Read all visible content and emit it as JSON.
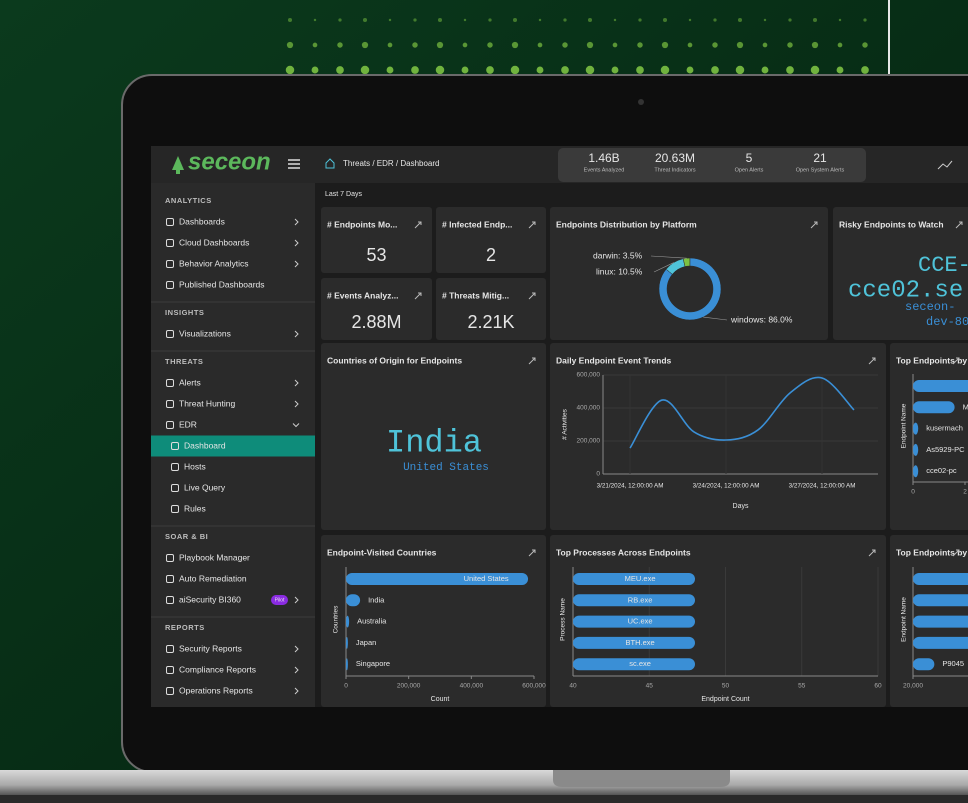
{
  "header": {
    "logo": "seceon",
    "breadcrumb": "Threats / EDR / Dashboard",
    "stats": [
      {
        "value": "1.46B",
        "label": "Events Analyzed"
      },
      {
        "value": "20.63M",
        "label": "Threat Indicators"
      },
      {
        "value": "5",
        "label": "Open Alerts"
      },
      {
        "value": "21",
        "label": "Open System Alerts"
      }
    ]
  },
  "sidebar": [
    {
      "title": "ANALYTICS",
      "items": [
        {
          "label": "Dashboards",
          "submenu": true
        },
        {
          "label": "Cloud Dashboards",
          "submenu": true
        },
        {
          "label": "Behavior Analytics",
          "submenu": true
        },
        {
          "label": "Published Dashboards"
        }
      ]
    },
    {
      "title": "INSIGHTS",
      "items": [
        {
          "label": "Visualizations",
          "submenu": true
        }
      ]
    },
    {
      "title": "THREATS",
      "items": [
        {
          "label": "Alerts",
          "submenu": true
        },
        {
          "label": "Threat Hunting",
          "submenu": true
        },
        {
          "label": "EDR",
          "expanded": true
        },
        {
          "label": "Dashboard",
          "sub": true,
          "active": true
        },
        {
          "label": "Hosts",
          "sub": true
        },
        {
          "label": "Live Query",
          "sub": true
        },
        {
          "label": "Rules",
          "sub": true
        }
      ]
    },
    {
      "title": "SOAR & BI",
      "items": [
        {
          "label": "Playbook Manager"
        },
        {
          "label": "Auto Remediation"
        },
        {
          "label": "aiSecurity BI360",
          "badge": "Pilot",
          "submenu": true
        }
      ]
    },
    {
      "title": "REPORTS",
      "items": [
        {
          "label": "Security Reports",
          "submenu": true
        },
        {
          "label": "Compliance Reports",
          "submenu": true
        },
        {
          "label": "Operations Reports",
          "submenu": true
        }
      ]
    }
  ],
  "date_range": "Last 7 Days",
  "kpis": [
    {
      "title": "# Endpoints Mo...",
      "value": 53
    },
    {
      "title": "# Infected Endp...",
      "value": 2
    },
    {
      "title": "# Events Analyz...",
      "value": "2.88M"
    },
    {
      "title": "# Threats Mitig...",
      "value": "2.21K"
    }
  ],
  "chart_data": [
    {
      "type": "pie",
      "title": "Endpoints Distribution by Platform",
      "categories": [
        "darwin",
        "linux",
        "windows"
      ],
      "values": [
        3.5,
        10.5,
        86.0
      ],
      "value_labels": [
        "darwin: 3.5%",
        "linux: 10.5%",
        "windows: 86.0%"
      ],
      "colors": [
        "#7cc142",
        "#4fc3d9",
        "#3a8fd6"
      ],
      "donut": true
    },
    {
      "type": "wordcloud",
      "title": "Countries of Origin for Endpoints",
      "words": [
        "India",
        "United States"
      ]
    },
    {
      "type": "wordcloud",
      "title": "Risky Endpoints to Watch",
      "words": [
        "CCE-",
        "cce02.se",
        "seceon-",
        "dev-80"
      ]
    },
    {
      "type": "line",
      "title": "Daily Endpoint Event Trends",
      "categories": [
        "3/21/2024, 12:00:00 AM",
        null,
        null,
        "3/24/2024, 12:00:00 AM",
        null,
        null,
        "3/27/2024, 12:00:00 AM",
        null
      ],
      "values": [
        157000,
        448000,
        255000,
        206000,
        267000,
        491000,
        582000,
        388000
      ],
      "color": "#3a8fd6",
      "ylim": [
        0,
        600000
      ],
      "yticks": [
        0,
        {
          "value": 200000,
          "label": "200,000"
        },
        {
          "value": 400000,
          "label": "400,000"
        },
        {
          "value": 600000,
          "label": "600,000"
        }
      ],
      "ylabel": "# Activities",
      "xlabel": "Days",
      "grid": true
    },
    {
      "type": "hbar",
      "title": "Top Endpoints by P",
      "categories": [
        null,
        "M",
        "kusermach",
        "As5929-PC",
        "cce02-pc"
      ],
      "values": [
        3,
        1.6,
        0.2,
        0.2,
        0.2
      ],
      "xlim": [
        0,
        6
      ],
      "xticks": [
        0,
        2
      ],
      "ylabel": "Endpoint Name",
      "xlabel": "N",
      "color": "#3a8fd6"
    },
    {
      "type": "hbar",
      "title": "Endpoint-Visited Countries",
      "categories": [
        "United States",
        "India",
        "Australia",
        "Japan",
        "Singapore"
      ],
      "values": [
        581000,
        45000,
        10000,
        6000,
        6000
      ],
      "xlim": [
        0,
        600000
      ],
      "xticks": [
        0,
        {
          "value": 200000,
          "label": "200,000"
        },
        {
          "value": 400000,
          "label": "400,000"
        },
        {
          "value": 600000,
          "label": "600,000"
        }
      ],
      "ylabel": "Countries",
      "xlabel": "Count",
      "color": "#3a8fd6"
    },
    {
      "type": "hbar",
      "title": "Top Processes Across Endpoints",
      "categories": [
        "MEU.exe",
        "RB.exe",
        "UC.exe",
        "BTH.exe",
        "sc.exe"
      ],
      "values": [
        48,
        48,
        48,
        48,
        48
      ],
      "xlim": [
        40,
        60
      ],
      "xticks": [
        40,
        45,
        50,
        55,
        60
      ],
      "ylabel": "Process Name",
      "xlabel": "Endpoint Count",
      "color": "#3a8fd6",
      "grid": true
    },
    {
      "type": "hbar",
      "title": "Top Endpoints by A",
      "categories": [
        null,
        null,
        null,
        null,
        "P9045"
      ],
      "values": [
        30000,
        30000,
        30000,
        30000,
        21400
      ],
      "xlim": [
        20000,
        40000
      ],
      "xticks": [
        {
          "value": 20000,
          "label": "20,000"
        }
      ],
      "ylabel": "Endpoint Name",
      "color": "#3a8fd6"
    }
  ]
}
